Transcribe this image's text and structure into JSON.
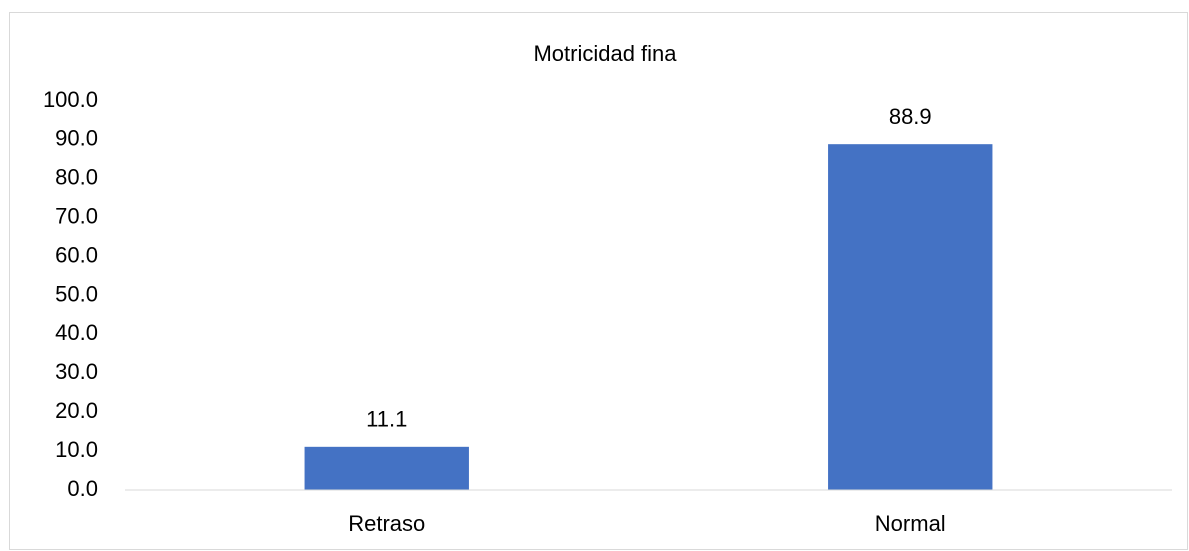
{
  "chart_data": {
    "type": "bar",
    "title": "Motricidad fina",
    "categories": [
      "Retraso",
      "Normal"
    ],
    "values": [
      11.1,
      88.9
    ],
    "color": "#4472c4",
    "ylim": [
      0,
      100
    ],
    "yticks": [
      {
        "value": 0,
        "label": "0.0"
      },
      {
        "value": 10,
        "label": "10.0"
      },
      {
        "value": 20,
        "label": "20.0"
      },
      {
        "value": 30,
        "label": "30.0"
      },
      {
        "value": 40,
        "label": "40.0"
      },
      {
        "value": 50,
        "label": "50.0"
      },
      {
        "value": 60,
        "label": "60.0"
      },
      {
        "value": 70,
        "label": "70.0"
      },
      {
        "value": 80,
        "label": "80.0"
      },
      {
        "value": 90,
        "label": "90.0"
      },
      {
        "value": 100,
        "label": "100.0"
      }
    ],
    "grid": false
  }
}
